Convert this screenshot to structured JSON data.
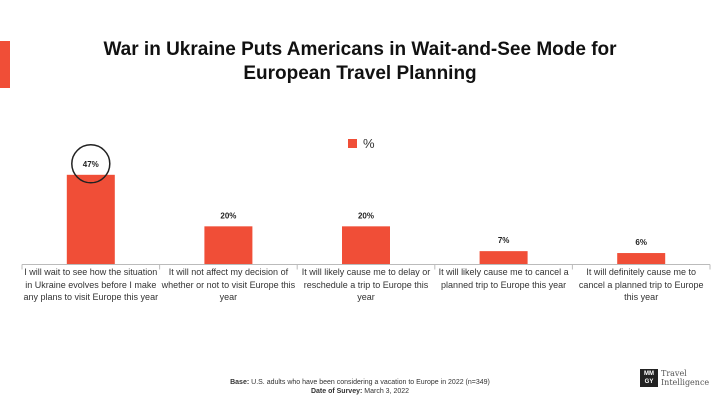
{
  "title_line1": "War in Ukraine Puts Americans in Wait-and-See Mode for",
  "title_line2": "European Travel Planning",
  "footer": {
    "base_label": "Base:",
    "base_text": "U.S. adults who have been considering a vacation to Europe in 2022 (n=349)",
    "date_label": "Date of Survey:",
    "date_text": "March 3, 2022"
  },
  "logo": {
    "mark_top": "MM",
    "mark_bottom": "GY",
    "text_line1": "Travel",
    "text_line2": "Intelligence"
  },
  "colors": {
    "accent": "#f04e37",
    "bar": "#f04e37"
  },
  "chart_data": {
    "type": "bar",
    "title": "War in Ukraine Puts Americans in Wait-and-See Mode for European Travel Planning",
    "categories": [
      "I will wait to see how the situation in Ukraine evolves before I make any plans to visit Europe this year",
      "It will not affect my decision of whether or not to visit Europe this year",
      "It will likely cause me to delay or reschedule a trip to Europe this year",
      "It will likely cause me to cancel a planned trip to Europe this year",
      "It will definitely cause me to cancel a planned trip to Europe this year"
    ],
    "series": [
      {
        "name": "%",
        "values": [
          47,
          20,
          20,
          7,
          6
        ]
      }
    ],
    "data_labels": [
      "47%",
      "20%",
      "20%",
      "7%",
      "6%"
    ],
    "highlighted_index": 0,
    "ylim": [
      0,
      60
    ],
    "legend": "top-center",
    "grid": false
  }
}
